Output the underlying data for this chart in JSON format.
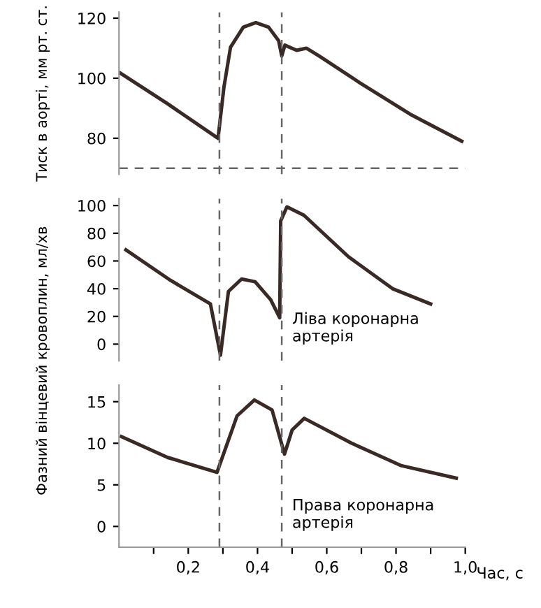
{
  "chart_data": [
    {
      "type": "line",
      "ylabel": "Тиск в аорті, мм рт. ст.",
      "ylim": [
        68,
        122
      ],
      "yticks": [
        80,
        100,
        120
      ],
      "xlim": [
        0,
        1.0
      ],
      "tick_labels": "y",
      "grid": false,
      "legend": false,
      "series": [
        {
          "color": "#3a2a26",
          "x": [
            0.0,
            0.14,
            0.286,
            0.303,
            0.322,
            0.359,
            0.395,
            0.432,
            0.461,
            0.47,
            0.479,
            0.513,
            0.541,
            0.578,
            0.695,
            0.841,
            0.99
          ],
          "values": [
            102,
            91.5,
            80,
            97,
            110.3,
            117,
            118.5,
            117,
            112.5,
            107.4,
            111,
            109.3,
            110,
            107.4,
            98.5,
            88,
            79
          ]
        }
      ],
      "ref_lines": [
        {
          "axis": "x",
          "value": 0.29,
          "color": "#666666",
          "line_style": "dashed"
        },
        {
          "axis": "x",
          "value": 0.47,
          "color": "#666666",
          "line_style": "dashed"
        },
        {
          "axis": "y",
          "value": 70,
          "color": "#666666",
          "line_style": "dashed"
        }
      ]
    },
    {
      "type": "line",
      "ylabel": "Фазний вінцевий кровоплин, мл/хв",
      "xlim": [
        0,
        1.0
      ],
      "ylim": [
        -12,
        105
      ],
      "yticks": [
        0,
        20,
        40,
        60,
        80,
        100
      ],
      "tick_labels": "y",
      "grid": false,
      "legend": false,
      "series": [
        {
          "color": "#3a2a26",
          "x": [
            0.02,
            0.149,
            0.264,
            0.293,
            0.316,
            0.354,
            0.393,
            0.438,
            0.464,
            0.467,
            0.485,
            0.534,
            0.663,
            0.79,
            0.9
          ],
          "values": [
            68,
            46,
            29,
            -8,
            38,
            47,
            45,
            32,
            19,
            89,
            99,
            93,
            63,
            40,
            29
          ]
        }
      ],
      "annotations": [
        "Ліва коронарна\nартерія"
      ],
      "ref_lines": [
        {
          "axis": "x",
          "value": 0.29,
          "color": "#666666",
          "line_style": "dashed"
        },
        {
          "axis": "x",
          "value": 0.47,
          "color": "#666666",
          "line_style": "dashed"
        }
      ]
    },
    {
      "type": "line",
      "xlabel": "Час, с",
      "xlim": [
        0,
        1.0
      ],
      "xticks": [
        {
          "value": 0.1,
          "label": null
        },
        {
          "value": 0.2,
          "label": "0,2"
        },
        {
          "value": 0.3,
          "label": null
        },
        {
          "value": 0.4,
          "label": "0,4"
        },
        {
          "value": 0.5,
          "label": null
        },
        {
          "value": 0.6,
          "label": "0,6"
        },
        {
          "value": 0.7,
          "label": null
        },
        {
          "value": 0.8,
          "label": "0,8"
        },
        {
          "value": 0.9,
          "label": null
        },
        {
          "value": 1.0,
          "label": "1,0"
        }
      ],
      "ylim": [
        -2.5,
        17
      ],
      "yticks": [
        0,
        5,
        10,
        15
      ],
      "grid": false,
      "legend": false,
      "series": [
        {
          "color": "#3a2a26",
          "x": [
            0.007,
            0.14,
            0.283,
            0.341,
            0.391,
            0.442,
            0.478,
            0.5,
            0.535,
            0.672,
            0.816,
            0.974
          ],
          "values": [
            10.8,
            8.3,
            6.5,
            13.3,
            15.2,
            14,
            8.7,
            11.6,
            13,
            10,
            7.3,
            5.8
          ]
        }
      ],
      "annotations": [
        "Права коронарна\nартерія"
      ],
      "ref_lines": [
        {
          "axis": "x",
          "value": 0.29,
          "color": "#666666",
          "line_style": "dashed"
        },
        {
          "axis": "x",
          "value": 0.47,
          "color": "#666666",
          "line_style": "dashed"
        }
      ]
    }
  ]
}
